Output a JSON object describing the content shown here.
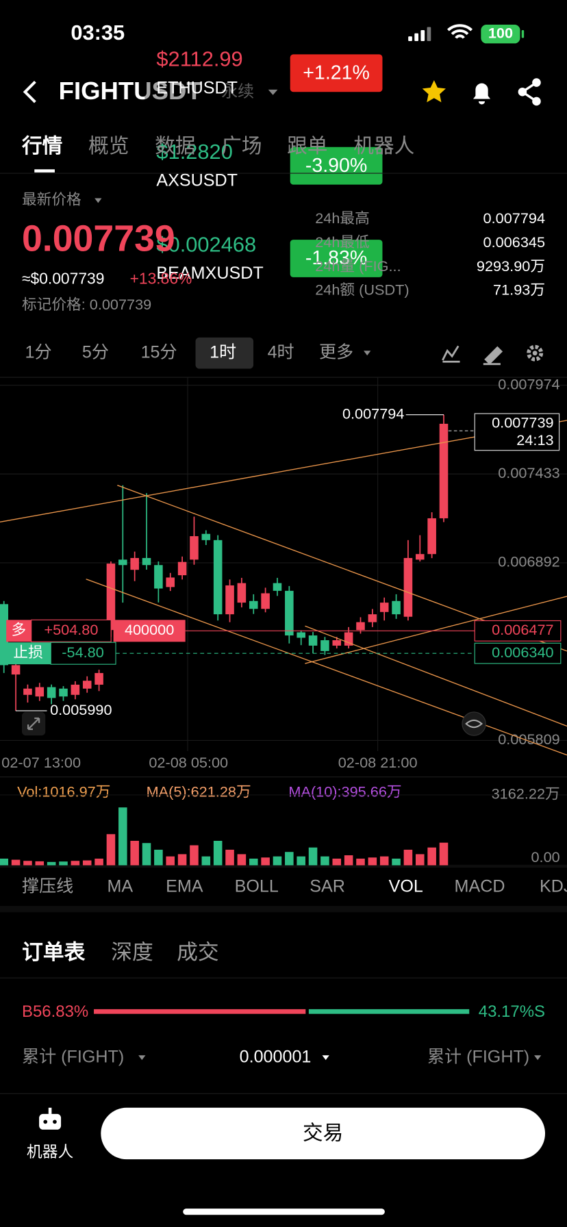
{
  "status_bar": {
    "time": "03:35",
    "battery": "100"
  },
  "header": {
    "symbol": "FIGHTUSDT",
    "contract": "永续"
  },
  "overlay_tickers": [
    {
      "price": "$2112.99",
      "symbol": "ETHUSDT",
      "change": "+1.21%"
    },
    {
      "price": "$1.2820",
      "symbol": "AXSUSDT",
      "change": "-3.90%"
    },
    {
      "price": "$0.002468",
      "symbol": "BEAMXUSDT",
      "change": "-1.83%"
    }
  ],
  "tabs": {
    "items": [
      "行情",
      "概览",
      "数据",
      "广场",
      "跟单",
      "机器人"
    ],
    "active": 0
  },
  "price": {
    "label": "最新价格",
    "last": "0.007739",
    "usd": "≈$0.007739",
    "change": "+13.86%",
    "mark": "标记价格: 0.007739"
  },
  "stats": [
    {
      "label": "24h最高",
      "value": "0.007794"
    },
    {
      "label": "24h最低",
      "value": "0.006345"
    },
    {
      "label": "24h量 (FIG...",
      "value": "9293.90万"
    },
    {
      "label": "24h额 (USDT)",
      "value": "71.93万"
    }
  ],
  "intervals": {
    "items": [
      "1分",
      "5分",
      "15分",
      "1时",
      "4时",
      "更多"
    ],
    "active": 3
  },
  "chart": {
    "ylim": [
      0.005744,
      0.008022
    ],
    "yticks": [
      0.007974,
      0.007433,
      0.006892,
      0.005809
    ],
    "x_labels": [
      "02-07 13:00",
      "02-08 05:00",
      "02-08 21:00"
    ],
    "high_label": 0.007794,
    "low_label": "0.005990",
    "last_price": 0.007739,
    "countdown": "24:13",
    "position": {
      "side": "多",
      "pnl": "+504.80",
      "qty": 400000,
      "entry": 0.006477
    },
    "stop_loss": {
      "label": "止损",
      "pnl": "-54.80",
      "price": "0.006340"
    },
    "candles": [
      {
        "open": 0.00664,
        "high": 0.006659,
        "low": 0.00622,
        "close": 0.006268
      },
      {
        "open": 0.006211,
        "high": 0.0063,
        "low": 0.00599,
        "close": 0.006268
      },
      {
        "open": 0.006087,
        "high": 0.00615,
        "low": 0.00604,
        "close": 0.006125
      },
      {
        "open": 0.006077,
        "high": 0.00616,
        "low": 0.00605,
        "close": 0.006134
      },
      {
        "open": 0.006134,
        "high": 0.00615,
        "low": 0.00603,
        "close": 0.006068
      },
      {
        "open": 0.006125,
        "high": 0.00614,
        "low": 0.00605,
        "close": 0.006077
      },
      {
        "open": 0.006087,
        "high": 0.00617,
        "low": 0.00606,
        "close": 0.006149
      },
      {
        "open": 0.006125,
        "high": 0.0062,
        "low": 0.0061,
        "close": 0.006173
      },
      {
        "open": 0.006149,
        "high": 0.00624,
        "low": 0.00611,
        "close": 0.00622
      },
      {
        "open": 0.006482,
        "high": 0.0069,
        "low": 0.00644,
        "close": 0.006887
      },
      {
        "open": 0.006911,
        "high": 0.007364,
        "low": 0.006649,
        "close": 0.006878
      },
      {
        "open": 0.006849,
        "high": 0.00696,
        "low": 0.00678,
        "close": 0.006921
      },
      {
        "open": 0.006921,
        "high": 0.007316,
        "low": 0.00685,
        "close": 0.006878
      },
      {
        "open": 0.006878,
        "high": 0.0069,
        "low": 0.00665,
        "close": 0.006735
      },
      {
        "open": 0.006744,
        "high": 0.00683,
        "low": 0.00672,
        "close": 0.006802
      },
      {
        "open": 0.006816,
        "high": 0.00693,
        "low": 0.00679,
        "close": 0.006897
      },
      {
        "open": 0.006911,
        "high": 0.007173,
        "low": 0.00688,
        "close": 0.007054
      },
      {
        "open": 0.007068,
        "high": 0.00709,
        "low": 0.007,
        "close": 0.00703
      },
      {
        "open": 0.00703,
        "high": 0.00706,
        "low": 0.00654,
        "close": 0.006578
      },
      {
        "open": 0.006578,
        "high": 0.00679,
        "low": 0.00653,
        "close": 0.006754
      },
      {
        "open": 0.006649,
        "high": 0.0068,
        "low": 0.00662,
        "close": 0.006768
      },
      {
        "open": 0.006659,
        "high": 0.0067,
        "low": 0.00658,
        "close": 0.006611
      },
      {
        "open": 0.006611,
        "high": 0.00674,
        "low": 0.00659,
        "close": 0.006706
      },
      {
        "open": 0.006768,
        "high": 0.0068,
        "low": 0.00669,
        "close": 0.006721
      },
      {
        "open": 0.006721,
        "high": 0.00675,
        "low": 0.0064,
        "close": 0.006449
      },
      {
        "open": 0.006468,
        "high": 0.00648,
        "low": 0.00639,
        "close": 0.006435
      },
      {
        "open": 0.006449,
        "high": 0.00647,
        "low": 0.00634,
        "close": 0.006387
      },
      {
        "open": 0.00642,
        "high": 0.00644,
        "low": 0.00633,
        "close": 0.006354
      },
      {
        "open": 0.006387,
        "high": 0.00644,
        "low": 0.00637,
        "close": 0.00642
      },
      {
        "open": 0.006387,
        "high": 0.0065,
        "low": 0.00637,
        "close": 0.006468
      },
      {
        "open": 0.006482,
        "high": 0.00656,
        "low": 0.00646,
        "close": 0.00653
      },
      {
        "open": 0.00653,
        "high": 0.00661,
        "low": 0.0065,
        "close": 0.006578
      },
      {
        "open": 0.006592,
        "high": 0.00668,
        "low": 0.00654,
        "close": 0.006649
      },
      {
        "open": 0.006659,
        "high": 0.0067,
        "low": 0.00655,
        "close": 0.006578
      },
      {
        "open": 0.006563,
        "high": 0.00703,
        "low": 0.00654,
        "close": 0.006921
      },
      {
        "open": 0.006911,
        "high": 0.00706,
        "low": 0.0069,
        "close": 0.006945
      },
      {
        "open": 0.006945,
        "high": 0.0072,
        "low": 0.00692,
        "close": 0.007163
      },
      {
        "open": 0.007163,
        "high": 0.007794,
        "low": 0.00714,
        "close": 0.007739
      }
    ]
  },
  "volume": {
    "label": "Vol:1016.97万",
    "ma5": "MA(5):621.28万",
    "ma10": "MA(10):395.66万",
    "ylim": [
      0,
      3162.22
    ],
    "yticks": [
      {
        "value": 3162.22,
        "label": "3162.22万"
      },
      {
        "value": 0,
        "label": "0.00"
      }
    ],
    "values": [
      300,
      250,
      200,
      180,
      150,
      170,
      200,
      220,
      300,
      1400,
      2600,
      1100,
      1000,
      700,
      400,
      500,
      900,
      400,
      1100,
      700,
      500,
      300,
      350,
      400,
      600,
      400,
      800,
      400,
      300,
      450,
      300,
      350,
      400,
      300,
      700,
      500,
      800,
      1016.97
    ]
  },
  "indicators": {
    "items": [
      "撑压线",
      "MA",
      "EMA",
      "BOLL",
      "SAR",
      "VOL",
      "MACD",
      "KDJ"
    ],
    "active": 5
  },
  "orderbook": {
    "tabs": {
      "items": [
        "订单表",
        "深度",
        "成交"
      ],
      "active": 0
    },
    "buy_label": "B56.83%",
    "sell_label": "43.17%S",
    "buy_ratio": 56.83,
    "left_col": "累计 (FIGHT)",
    "precision": "0.000001",
    "right_col": "累计 (FIGHT)"
  },
  "bottom": {
    "robot": "机器人",
    "trade": "交易"
  }
}
